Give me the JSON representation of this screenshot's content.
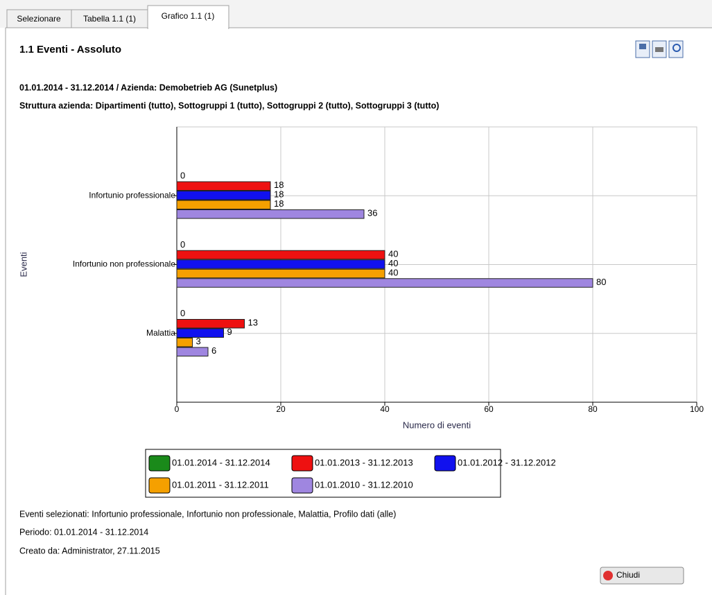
{
  "tabs": [
    "Selezionare",
    "Tabella 1.1 (1)",
    "Grafico 1.1 (1)"
  ],
  "header": {
    "title": "1.1 Eventi - Assoluto",
    "lines": [
      "01.01.2014 - 31.12.2014 / Azienda: Demobetrieb AG (Sunetplus)",
      "Struttura azienda: Dipartimenti (tutto), Sottogruppi 1 (tutto), Sottogruppi 2 (tutto), Sottogruppi 3 (tutto)"
    ]
  },
  "chart_data": {
    "type": "hbar",
    "categories": [
      "Infortunio professionale",
      "Infortunio non professionale",
      "Malattia"
    ],
    "series": [
      {
        "name": "01.01.2014 - 31.12.2014",
        "color": "#1a8a1a",
        "values": [
          0,
          0,
          0
        ]
      },
      {
        "name": "01.01.2013 - 31.12.2013",
        "color": "#ee1111",
        "values": [
          18,
          40,
          13
        ]
      },
      {
        "name": "01.01.2012 - 31.12.2012",
        "color": "#1111ee",
        "values": [
          18,
          40,
          9
        ]
      },
      {
        "name": "01.01.2011 - 31.12.2011",
        "color": "#f5a000",
        "values": [
          18,
          40,
          3
        ]
      },
      {
        "name": "01.01.2010 - 31.12.2010",
        "color": "#9f86e0",
        "values": [
          36,
          80,
          6
        ]
      }
    ],
    "xlim": [
      0,
      100
    ],
    "xticks": [
      0,
      20,
      40,
      60,
      80,
      100
    ],
    "xlabel": "Numero di eventi",
    "ylabel": "Eventi",
    "grid": true
  },
  "footer": {
    "lines": [
      "Eventi selezionati: Infortunio professionale, Infortunio non professionale, Malattia, Profilo dati (alle)",
      "Periodo: 01.01.2014 - 31.12.2014",
      "Creato da: Administrator, 27.11.2015"
    ]
  },
  "button": "Chiudi"
}
